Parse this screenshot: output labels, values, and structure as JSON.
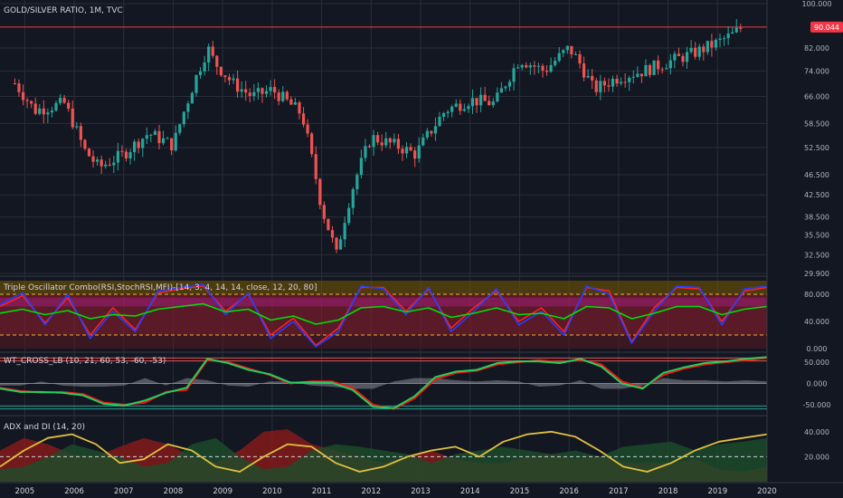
{
  "chart_data": [
    {
      "type": "candlestick",
      "title": "GOLD/SILVER RATIO, 1M, TVC",
      "y_ticks": [
        "100.000",
        "90.044",
        "82.000",
        "74.000",
        "66.000",
        "58.500",
        "52.500",
        "46.500",
        "42.500",
        "38.500",
        "35.500",
        "32.500",
        "29.900"
      ],
      "y_range": [
        29.9,
        100.0
      ],
      "y_scale": "log",
      "last_price": "90.044",
      "key_points": {
        "dates": [
          2004.8,
          2005.2,
          2005.8,
          2006.2,
          2006.5,
          2007.0,
          2007.5,
          2008.0,
          2008.3,
          2008.7,
          2008.83,
          2009.2,
          2009.6,
          2010.0,
          2010.6,
          2010.8,
          2011.0,
          2011.3,
          2011.6,
          2012.0,
          2012.5,
          2012.9,
          2013.5,
          2014.0,
          2014.5,
          2015.0,
          2015.5,
          2016.0,
          2016.2,
          2016.5,
          2017.0,
          2017.5,
          2018.0,
          2018.5,
          2019.0,
          2019.3,
          2019.5
        ],
        "ratio": [
          70,
          62,
          64,
          52,
          48,
          51,
          56,
          53,
          65,
          82,
          77,
          70,
          66,
          68,
          61,
          50,
          40,
          32.5,
          43,
          55,
          53,
          51,
          62,
          65,
          64,
          78,
          74,
          82,
          77,
          68,
          72,
          74,
          77,
          80,
          84,
          87,
          90
        ]
      }
    },
    {
      "type": "line",
      "title": "Triple Oscillator Combo(RSI,StochRSI,MFI)-[14, 3, 4, 14, 14, close, 12, 20, 80]",
      "y_ticks": [
        "80.000",
        "40.000",
        "0.000"
      ],
      "y_range": [
        0,
        100
      ],
      "bands": [
        20,
        80
      ],
      "series": [
        {
          "color": "#ff2020",
          "values": [
            62,
            78,
            38,
            75,
            20,
            60,
            28,
            82,
            88,
            92,
            55,
            80,
            20,
            45,
            5,
            30,
            90,
            90,
            55,
            88,
            30,
            60,
            85,
            40,
            60,
            25,
            90,
            85,
            10,
            60,
            90,
            88,
            40,
            85,
            90
          ]
        },
        {
          "color": "#2040ff",
          "values": [
            65,
            82,
            35,
            80,
            15,
            55,
            25,
            85,
            90,
            95,
            50,
            82,
            15,
            40,
            3,
            25,
            92,
            88,
            50,
            90,
            25,
            55,
            88,
            35,
            55,
            20,
            92,
            80,
            8,
            55,
            92,
            90,
            35,
            88,
            92
          ]
        },
        {
          "color": "#00e000",
          "values": [
            52,
            58,
            50,
            56,
            44,
            50,
            48,
            58,
            62,
            66,
            54,
            58,
            42,
            48,
            36,
            42,
            60,
            62,
            54,
            60,
            46,
            52,
            60,
            50,
            52,
            44,
            62,
            60,
            44,
            52,
            62,
            62,
            50,
            58,
            62
          ]
        }
      ]
    },
    {
      "type": "line",
      "title": "WT_CROSS_LB (10, 21, 60, 53, -60, -53)",
      "y_ticks": [
        "50.000",
        "0.000",
        "-50.000"
      ],
      "y_range": [
        -65,
        65
      ],
      "series": [
        {
          "color": "#ff1010",
          "values": [
            -10,
            -18,
            -22,
            -20,
            -25,
            -45,
            -50,
            -45,
            -20,
            -15,
            55,
            50,
            35,
            20,
            0,
            5,
            5,
            -10,
            -50,
            -60,
            -35,
            10,
            25,
            30,
            45,
            50,
            55,
            50,
            55,
            45,
            5,
            -10,
            20,
            35,
            45,
            50,
            55,
            60
          ]
        },
        {
          "color": "#20d060",
          "values": [
            -12,
            -20,
            -20,
            -22,
            -28,
            -48,
            -52,
            -40,
            -22,
            -10,
            58,
            48,
            32,
            22,
            2,
            3,
            2,
            -15,
            -55,
            -58,
            -30,
            15,
            28,
            32,
            48,
            52,
            52,
            48,
            58,
            40,
            0,
            -12,
            25,
            38,
            48,
            52,
            58,
            62
          ]
        }
      ]
    },
    {
      "type": "area",
      "title": "ADX and DI (14, 20)",
      "y_ticks": [
        "40.000",
        "20.000"
      ],
      "y_range": [
        0,
        50
      ],
      "threshold": 20,
      "series": [
        {
          "color": "#e0c040",
          "values": [
            12,
            25,
            35,
            38,
            30,
            15,
            18,
            30,
            25,
            12,
            8,
            20,
            30,
            28,
            15,
            8,
            12,
            20,
            25,
            28,
            20,
            32,
            38,
            40,
            36,
            25,
            12,
            8,
            15,
            25,
            32,
            35,
            38
          ]
        },
        {
          "color": "#8b1a1a",
          "values": [
            25,
            35,
            30,
            22,
            20,
            28,
            35,
            30,
            20,
            15,
            25,
            40,
            42,
            30,
            25,
            20,
            15,
            20,
            25,
            18,
            15,
            15,
            20,
            22,
            18,
            20,
            15,
            15,
            15,
            18,
            10,
            8,
            12
          ]
        },
        {
          "color": "#1b4d2a",
          "values": [
            10,
            12,
            20,
            30,
            25,
            20,
            12,
            15,
            30,
            35,
            20,
            10,
            12,
            25,
            30,
            28,
            25,
            22,
            15,
            22,
            25,
            28,
            25,
            22,
            25,
            20,
            28,
            30,
            32,
            25,
            30,
            32,
            35
          ]
        }
      ]
    }
  ],
  "x_axis": {
    "labels": [
      "2005",
      "2006",
      "2007",
      "2008",
      "2009",
      "2010",
      "2011",
      "2012",
      "2013",
      "2014",
      "2015",
      "2016",
      "2017",
      "2018",
      "2019",
      "2020"
    ],
    "range": [
      2004.5,
      2020.0
    ]
  },
  "colors": {
    "bg": "#131722",
    "grid": "#2a2e39",
    "up": "#26a69a",
    "down": "#ef5350",
    "text": "#d1d4dc",
    "price_tag": "#f23645"
  }
}
